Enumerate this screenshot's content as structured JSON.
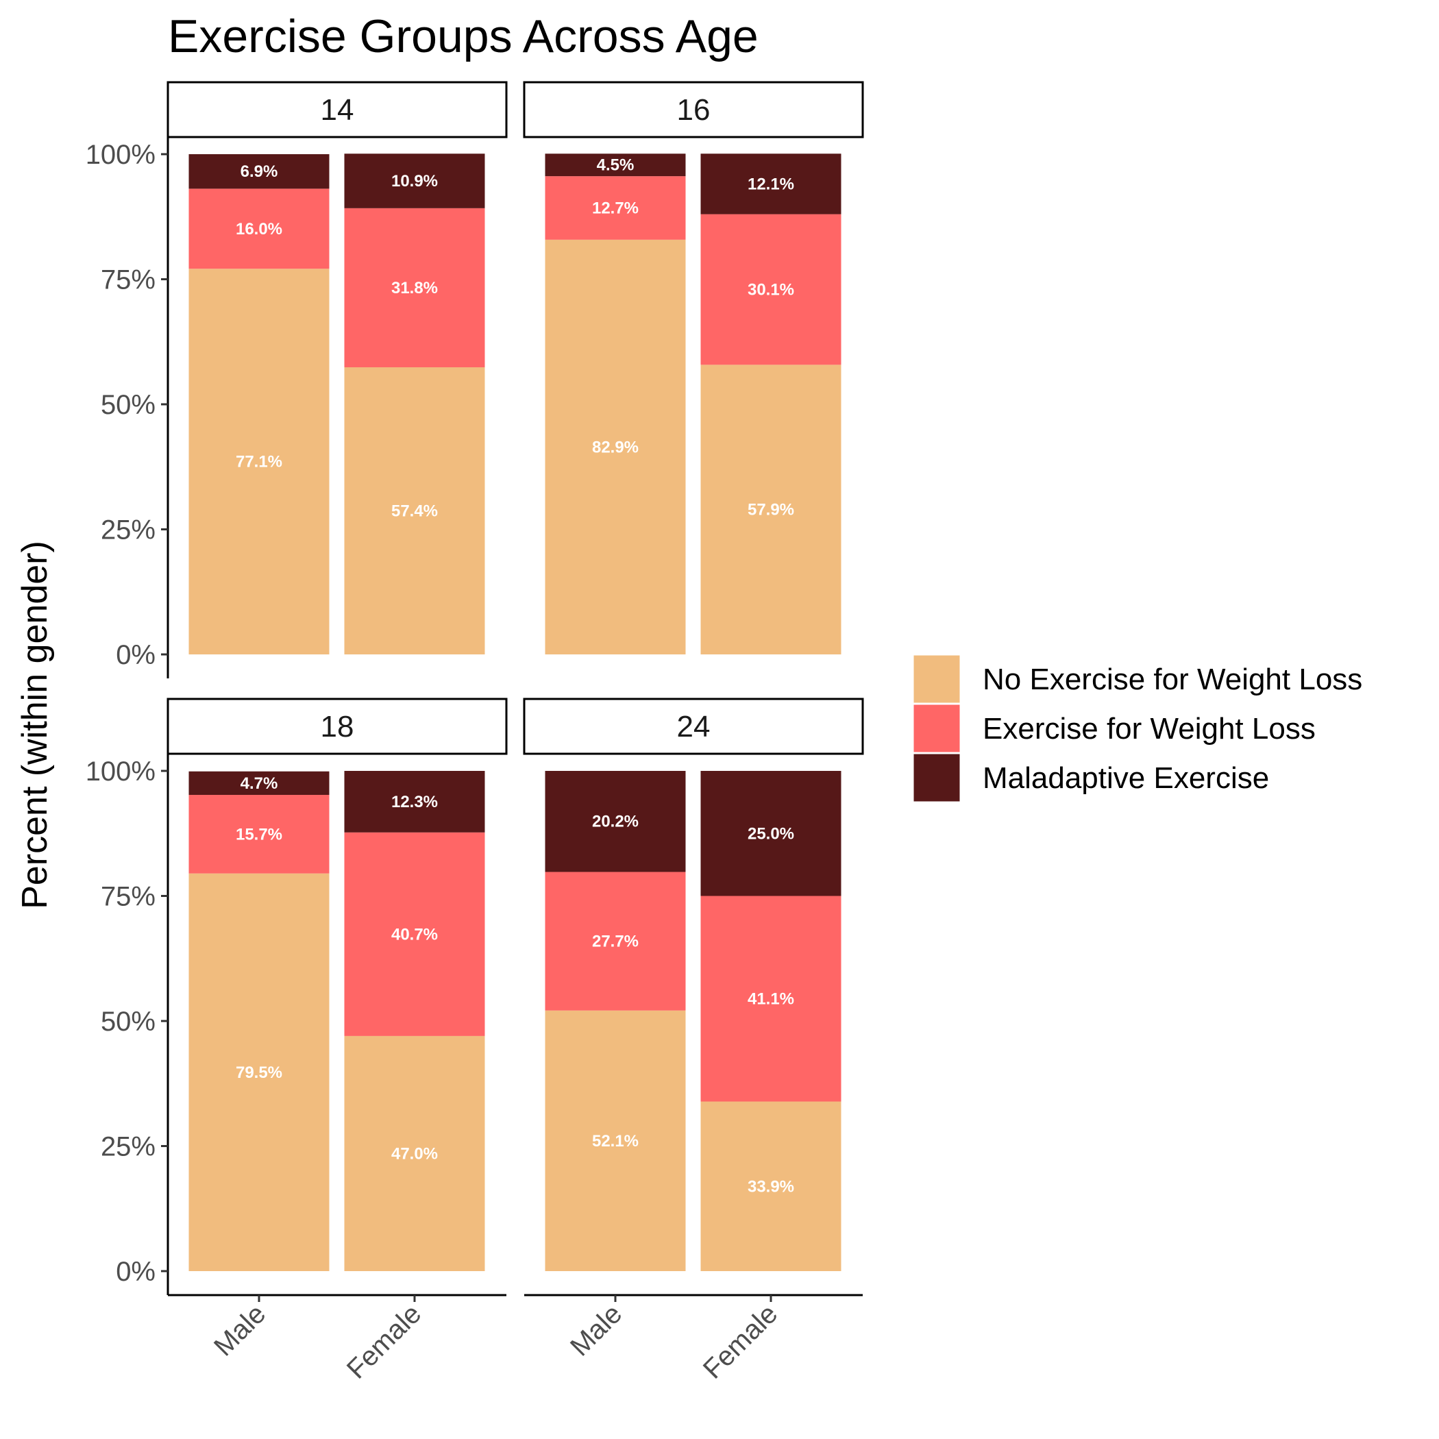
{
  "chart_data": {
    "type": "bar",
    "stacked": true,
    "title": "Exercise Groups Across Age",
    "ylabel": "Percent (within gender)",
    "xlabel": "",
    "ylim": [
      0,
      100
    ],
    "yticks": [
      "0%",
      "25%",
      "50%",
      "75%",
      "100%"
    ],
    "categories": [
      "Male",
      "Female"
    ],
    "legend": {
      "position": "right",
      "entries": [
        {
          "name": "No Exercise for Weight Loss",
          "color": "#F1BC7E"
        },
        {
          "name": "Exercise for Weight Loss",
          "color": "#FF6666"
        },
        {
          "name": "Maladaptive Exercise",
          "color": "#561818"
        }
      ]
    },
    "panels": [
      {
        "label": "14",
        "series": [
          {
            "name": "No Exercise for Weight Loss",
            "values": [
              77.1,
              57.4
            ],
            "labels": [
              "77.1%",
              "57.4%"
            ]
          },
          {
            "name": "Exercise for Weight Loss",
            "values": [
              16.0,
              31.8
            ],
            "labels": [
              "16.0%",
              "31.8%"
            ]
          },
          {
            "name": "Maladaptive Exercise",
            "values": [
              6.9,
              10.9
            ],
            "labels": [
              "6.9%",
              "10.9%"
            ]
          }
        ]
      },
      {
        "label": "16",
        "series": [
          {
            "name": "No Exercise for Weight Loss",
            "values": [
              82.9,
              57.9
            ],
            "labels": [
              "82.9%",
              "57.9%"
            ]
          },
          {
            "name": "Exercise for Weight Loss",
            "values": [
              12.7,
              30.1
            ],
            "labels": [
              "12.7%",
              "30.1%"
            ]
          },
          {
            "name": "Maladaptive Exercise",
            "values": [
              4.5,
              12.1
            ],
            "labels": [
              "4.5%",
              "12.1%"
            ]
          }
        ]
      },
      {
        "label": "18",
        "series": [
          {
            "name": "No Exercise for Weight Loss",
            "values": [
              79.5,
              47.0
            ],
            "labels": [
              "79.5%",
              "47.0%"
            ]
          },
          {
            "name": "Exercise for Weight Loss",
            "values": [
              15.7,
              40.7
            ],
            "labels": [
              "15.7%",
              "40.7%"
            ]
          },
          {
            "name": "Maladaptive Exercise",
            "values": [
              4.7,
              12.3
            ],
            "labels": [
              "4.7%",
              "12.3%"
            ]
          }
        ]
      },
      {
        "label": "24",
        "series": [
          {
            "name": "No Exercise for Weight Loss",
            "values": [
              52.1,
              33.9
            ],
            "labels": [
              "52.1%",
              "33.9%"
            ]
          },
          {
            "name": "Exercise for Weight Loss",
            "values": [
              27.7,
              41.1
            ],
            "labels": [
              "27.7%",
              "41.1%"
            ]
          },
          {
            "name": "Maladaptive Exercise",
            "values": [
              20.2,
              25.0
            ],
            "labels": [
              "20.2%",
              "25.0%"
            ]
          }
        ]
      }
    ]
  }
}
